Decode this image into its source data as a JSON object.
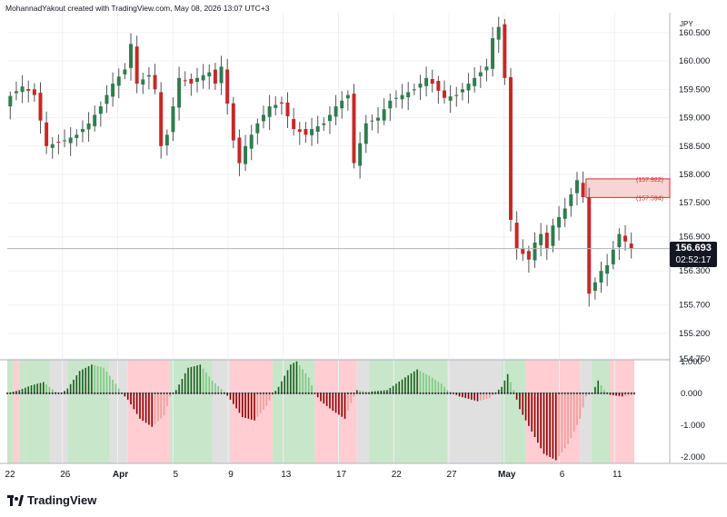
{
  "attribution": "MohannadYakout created with TradingView.com, May 08, 2026 13:07 UTC+3",
  "currency": "JPY",
  "brand": "TradingView",
  "last_price": "156.693",
  "countdown": "02:52:17",
  "colors": {
    "up": "#2e7d4f",
    "down": "#c62828",
    "zone_fill": "#f8d4d4",
    "zone_border": "#d32f2f",
    "bg_green": "#c8e6c9",
    "bg_red": "#ffcdd2",
    "bg_gray": "#e0e0e0"
  },
  "chart_data": [
    {
      "type": "candlestick",
      "currency": "JPY",
      "y_ticks": [
        "160.500",
        "160.000",
        "159.500",
        "159.000",
        "158.500",
        "158.000",
        "157.500",
        "156.900",
        "156.300",
        "155.700",
        "155.200",
        "154.750"
      ],
      "ylim": [
        154.75,
        160.85
      ],
      "x_ticks": [
        "22",
        "26",
        "Apr",
        "5",
        "9",
        "13",
        "17",
        "22",
        "27",
        "May",
        "6",
        "11"
      ],
      "grid": true,
      "zone": {
        "high": "157.922",
        "low": "157.594",
        "high_label": "(157.922)",
        "low_label": "(157.594)"
      },
      "close_path": [
        [
          0,
          159.3
        ],
        [
          3,
          159.55
        ],
        [
          5,
          159.4
        ],
        [
          7,
          158.5
        ],
        [
          10,
          158.6
        ],
        [
          12,
          158.7
        ],
        [
          14,
          158.9
        ],
        [
          16,
          159.2
        ],
        [
          18,
          159.6
        ],
        [
          20,
          159.85
        ],
        [
          21,
          160.3
        ],
        [
          22,
          159.6
        ],
        [
          24,
          159.75
        ],
        [
          25,
          159.5
        ],
        [
          26,
          158.5
        ],
        [
          27,
          158.7
        ],
        [
          29,
          159.7
        ],
        [
          31,
          159.6
        ],
        [
          32,
          159.7
        ],
        [
          34,
          159.8
        ],
        [
          35,
          159.6
        ],
        [
          36,
          159.9
        ],
        [
          38,
          158.6
        ],
        [
          39,
          158.2
        ],
        [
          40,
          158.5
        ],
        [
          42,
          158.9
        ],
        [
          44,
          159.2
        ],
        [
          46,
          159.25
        ],
        [
          48,
          158.8
        ],
        [
          50,
          158.7
        ],
        [
          51,
          158.8
        ],
        [
          53,
          158.9
        ],
        [
          55,
          159.2
        ],
        [
          57,
          159.4
        ],
        [
          58,
          158.2
        ],
        [
          60,
          158.9
        ],
        [
          62,
          159.0
        ],
        [
          64,
          159.3
        ],
        [
          66,
          159.4
        ],
        [
          68,
          159.5
        ],
        [
          70,
          159.7
        ],
        [
          71,
          159.6
        ],
        [
          73,
          159.35
        ],
        [
          75,
          159.4
        ],
        [
          77,
          159.6
        ],
        [
          80,
          159.9
        ],
        [
          81,
          160.4
        ],
        [
          82,
          160.6
        ],
        [
          83,
          159.7
        ],
        [
          84,
          157.2
        ],
        [
          85,
          156.7
        ],
        [
          87,
          156.5
        ],
        [
          88,
          156.8
        ],
        [
          89,
          156.95
        ],
        [
          90,
          156.7
        ],
        [
          91,
          157.1
        ],
        [
          93,
          157.4
        ],
        [
          95,
          157.9
        ],
        [
          96,
          157.6
        ],
        [
          97,
          155.9
        ],
        [
          98,
          156.1
        ],
        [
          99,
          156.3
        ],
        [
          100,
          156.4
        ],
        [
          102,
          156.95
        ],
        [
          104,
          156.69
        ]
      ]
    },
    {
      "type": "bar",
      "y_ticks": [
        "1.000",
        "0.000",
        "-1.000",
        "-2.000"
      ],
      "ylim": [
        -2.2,
        1.05
      ],
      "background_bands": [
        {
          "from": 0,
          "to": 1,
          "color": "green"
        },
        {
          "from": 1,
          "to": 2,
          "color": "red"
        },
        {
          "from": 2,
          "to": 3,
          "color": "green"
        },
        {
          "from": 3,
          "to": 7,
          "color": "green"
        },
        {
          "from": 7,
          "to": 10,
          "color": "gray"
        },
        {
          "from": 10,
          "to": 17,
          "color": "green"
        },
        {
          "from": 17,
          "to": 20,
          "color": "gray"
        },
        {
          "from": 20,
          "to": 27,
          "color": "red"
        },
        {
          "from": 27,
          "to": 34,
          "color": "green"
        },
        {
          "from": 34,
          "to": 37,
          "color": "gray"
        },
        {
          "from": 37,
          "to": 44,
          "color": "red"
        },
        {
          "from": 44,
          "to": 51,
          "color": "green"
        },
        {
          "from": 51,
          "to": 58,
          "color": "red"
        },
        {
          "from": 58,
          "to": 60,
          "color": "gray"
        },
        {
          "from": 60,
          "to": 73,
          "color": "green"
        },
        {
          "from": 73,
          "to": 82,
          "color": "gray"
        },
        {
          "from": 82,
          "to": 86,
          "color": "green"
        },
        {
          "from": 86,
          "to": 95,
          "color": "red"
        },
        {
          "from": 95,
          "to": 97,
          "color": "gray"
        },
        {
          "from": 97,
          "to": 100,
          "color": "green"
        },
        {
          "from": 100,
          "to": 104,
          "color": "red"
        }
      ],
      "histogram_path": [
        [
          0,
          0.0
        ],
        [
          2,
          0.1
        ],
        [
          4,
          0.25
        ],
        [
          6,
          0.35
        ],
        [
          8,
          0.05
        ],
        [
          9,
          0.0
        ],
        [
          10,
          0.15
        ],
        [
          12,
          0.7
        ],
        [
          14,
          0.9
        ],
        [
          16,
          0.8
        ],
        [
          18,
          0.3
        ],
        [
          19,
          0.0
        ],
        [
          20,
          -0.2
        ],
        [
          22,
          -0.8
        ],
        [
          24,
          -1.05
        ],
        [
          26,
          -0.7
        ],
        [
          27,
          -0.1
        ],
        [
          28,
          0.1
        ],
        [
          30,
          0.8
        ],
        [
          32,
          0.9
        ],
        [
          34,
          0.4
        ],
        [
          36,
          0.05
        ],
        [
          37,
          -0.2
        ],
        [
          39,
          -0.75
        ],
        [
          41,
          -0.85
        ],
        [
          43,
          -0.4
        ],
        [
          44,
          -0.05
        ],
        [
          45,
          0.2
        ],
        [
          47,
          0.9
        ],
        [
          48,
          1.0
        ],
        [
          50,
          0.5
        ],
        [
          51,
          0.0
        ],
        [
          52,
          -0.25
        ],
        [
          54,
          -0.55
        ],
        [
          56,
          -0.8
        ],
        [
          57,
          -0.3
        ],
        [
          58,
          0.1
        ],
        [
          60,
          0.05
        ],
        [
          63,
          0.1
        ],
        [
          66,
          0.5
        ],
        [
          68,
          0.75
        ],
        [
          70,
          0.55
        ],
        [
          72,
          0.3
        ],
        [
          73,
          0.1
        ],
        [
          75,
          -0.1
        ],
        [
          78,
          -0.25
        ],
        [
          80,
          -0.15
        ],
        [
          82,
          0.2
        ],
        [
          83,
          0.6
        ],
        [
          84,
          0.1
        ],
        [
          85,
          -0.5
        ],
        [
          87,
          -1.2
        ],
        [
          89,
          -1.9
        ],
        [
          91,
          -2.1
        ],
        [
          93,
          -1.6
        ],
        [
          95,
          -0.8
        ],
        [
          96,
          -0.1
        ],
        [
          97,
          0.0
        ],
        [
          98,
          0.4
        ],
        [
          99,
          0.1
        ],
        [
          100,
          -0.05
        ],
        [
          102,
          -0.1
        ],
        [
          104,
          -0.05
        ]
      ]
    }
  ]
}
